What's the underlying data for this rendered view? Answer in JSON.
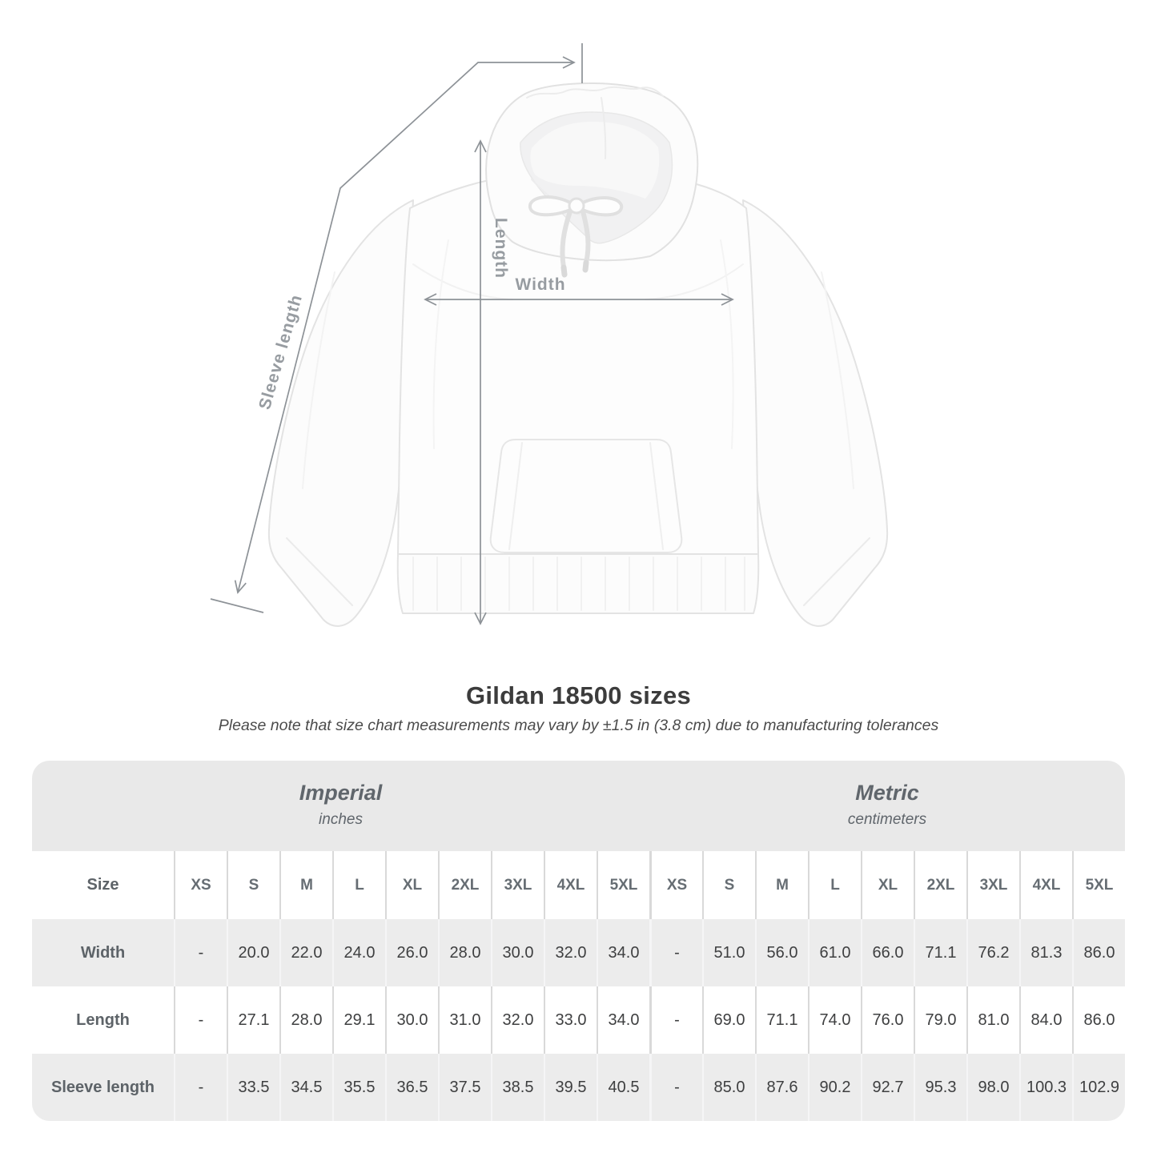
{
  "header": {
    "title": "Gildan 18500 sizes",
    "subtitle": "Please note that size chart measurements may vary by ±1.5 in (3.8 cm) due to manufacturing tolerances"
  },
  "diagram": {
    "length_label": "Length",
    "width_label": "Width",
    "sleeve_label": "Sleeve length"
  },
  "table": {
    "size_header": "Size",
    "unit_groups": [
      {
        "title": "Imperial",
        "subtitle": "inches"
      },
      {
        "title": "Metric",
        "subtitle": "centimeters"
      }
    ],
    "sizes": [
      "XS",
      "S",
      "M",
      "L",
      "XL",
      "2XL",
      "3XL",
      "4XL",
      "5XL"
    ],
    "rows": [
      {
        "label": "Width",
        "imperial": [
          "-",
          "20.0",
          "22.0",
          "24.0",
          "26.0",
          "28.0",
          "30.0",
          "32.0",
          "34.0"
        ],
        "metric": [
          "-",
          "51.0",
          "56.0",
          "61.0",
          "66.0",
          "71.1",
          "76.2",
          "81.3",
          "86.0"
        ]
      },
      {
        "label": "Length",
        "imperial": [
          "-",
          "27.1",
          "28.0",
          "29.1",
          "30.0",
          "31.0",
          "32.0",
          "33.0",
          "34.0"
        ],
        "metric": [
          "-",
          "69.0",
          "71.1",
          "74.0",
          "76.0",
          "79.0",
          "81.0",
          "84.0",
          "86.0"
        ]
      },
      {
        "label": "Sleeve length",
        "imperial": [
          "-",
          "33.5",
          "34.5",
          "35.5",
          "36.5",
          "37.5",
          "38.5",
          "39.5",
          "40.5"
        ],
        "metric": [
          "-",
          "85.0",
          "87.6",
          "90.2",
          "92.7",
          "95.3",
          "98.0",
          "100.3",
          "102.9"
        ]
      }
    ]
  },
  "colors": {
    "band_bg": "#e9e9e9",
    "shaded_row_bg": "#ececec",
    "separator": "#d9d9d9",
    "dimension_line": "#8d9297",
    "dimension_label": "#979ca1",
    "heading_text": "#60666c",
    "cell_text": "#3e3f40",
    "title_text": "#3c3c3c"
  }
}
